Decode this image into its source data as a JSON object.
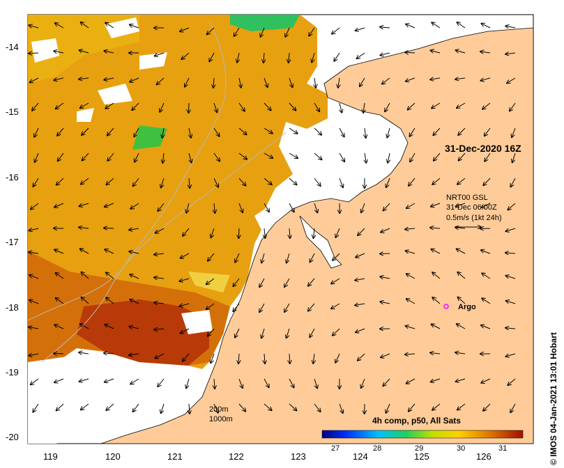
{
  "map": {
    "date_label": "31-Dec-2020 16Z",
    "current_info": {
      "line1": "NRT00 GSL",
      "line2": "31-Dec 06:00Z",
      "line3": "0.5m/s (1kt 24h)"
    },
    "argo_label": "Argo",
    "depth_contours": {
      "line1": "200m",
      "line2": "1000m"
    },
    "colorbar": {
      "title": "4h comp, p50, All Sats",
      "ticks": [
        "27",
        "28",
        "29",
        "30",
        "31"
      ]
    },
    "credit": "© IMOS 04-Jan-2021 13:01 Hobart",
    "y_axis": [
      "-14",
      "-15",
      "-16",
      "-17",
      "-18",
      "-19",
      "-20"
    ],
    "x_axis": [
      "119",
      "120",
      "121",
      "122",
      "123",
      "124",
      "125",
      "126"
    ]
  },
  "colors": {
    "land": "#ffcc99",
    "ocean_warm": "#e7a010",
    "ocean_hot": "#b83a08",
    "ocean_cool": "#e8c020",
    "cloud_mask": "#ffffff"
  }
}
